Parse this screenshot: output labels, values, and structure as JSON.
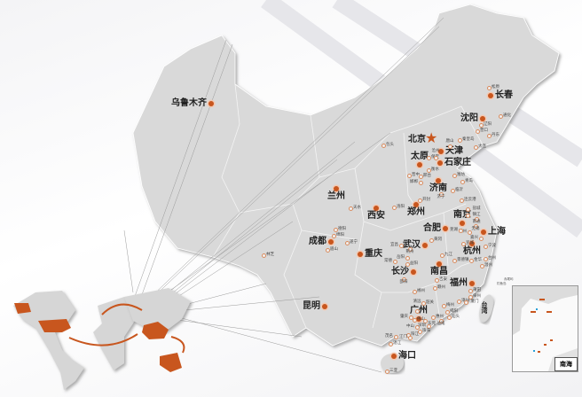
{
  "colors": {
    "accent": "#c8561e",
    "land": "#d9d9d9",
    "background": "#ffffff"
  },
  "capital": {
    "name": "北京",
    "icon": "star-icon"
  },
  "major_cities": [
    "乌鲁木齐",
    "长春",
    "沈阳",
    "天津",
    "太原",
    "石家庄",
    "济南",
    "郑州",
    "兰州",
    "西安",
    "南京",
    "合肥",
    "上海",
    "武汉",
    "杭州",
    "成都",
    "重庆",
    "长沙",
    "南昌",
    "福州",
    "昆明",
    "广州",
    "海口"
  ],
  "minor_cities": [
    "松原",
    "通化",
    "辽阳",
    "营口",
    "秦皇岛",
    "丹东",
    "唐山",
    "大连",
    "保定",
    "沧州",
    "衡水",
    "晋中",
    "邢台",
    "邯郸",
    "潍坊",
    "青岛",
    "临沂",
    "济宁",
    "连云港",
    "包头",
    "天水",
    "洛阳",
    "开封",
    "盐城",
    "镇江",
    "南通",
    "无锡",
    "湖州",
    "嘉兴",
    "宁波",
    "芜湖",
    "宣城",
    "黄冈",
    "荆州",
    "宜昌",
    "岳阳",
    "常德",
    "益阳",
    "邵阳",
    "九江",
    "景德镇",
    "金华",
    "台州",
    "温州",
    "吉安",
    "赣州",
    "郴州",
    "莆田",
    "泉州",
    "漳州",
    "厦门",
    "梅州",
    "汕头",
    "揭阳",
    "惠州",
    "汕尾",
    "韶关",
    "清远",
    "肇庆",
    "佛山",
    "东莞",
    "中山",
    "深圳",
    "珠海",
    "阳江",
    "江门",
    "茂名",
    "湛江",
    "三亚",
    "德阳",
    "绵阳",
    "遂宁",
    "眉山",
    "林芝"
  ],
  "region_label": "台湾",
  "inset": {
    "title": "南海",
    "top_labels": [
      "赤尾屿",
      "钓鱼岛"
    ]
  }
}
